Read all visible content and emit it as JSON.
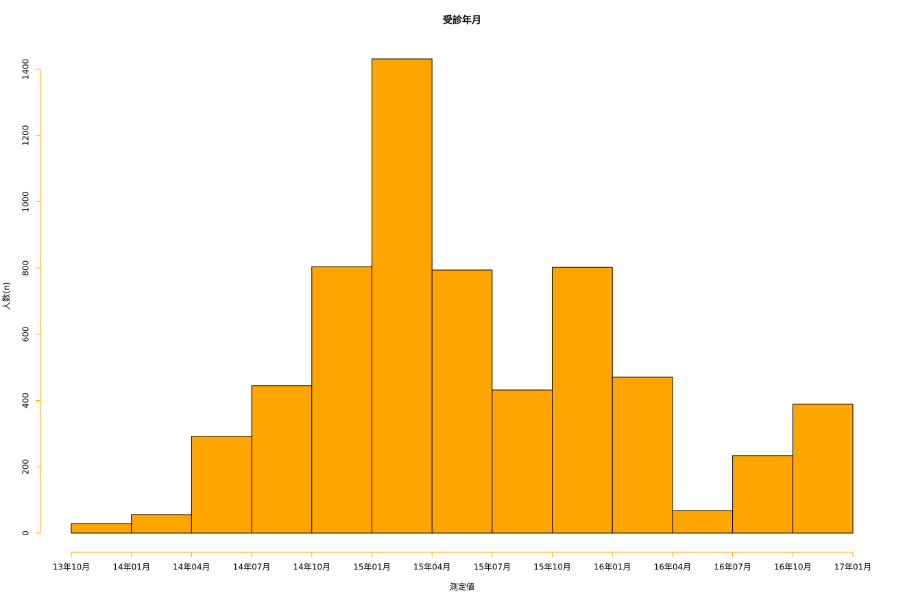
{
  "chart_data": {
    "type": "histogram",
    "title": "受診年月",
    "xlabel": "測定値",
    "ylabel": "人数(n)",
    "bins": [
      "13年10月",
      "14年01月",
      "14年04月",
      "14年07月",
      "14年10月",
      "15年01月",
      "15年04月",
      "15年07月",
      "15年10月",
      "16年01月",
      "16年04月",
      "16年07月",
      "16年10月",
      "17年01月"
    ],
    "counts": [
      29,
      56,
      292,
      445,
      804,
      1431,
      794,
      432,
      802,
      471,
      68,
      234,
      389
    ],
    "color": "#ffa500",
    "axis_color": "#ffa500",
    "ylim": [
      0,
      1431
    ],
    "yticks": [
      0,
      200,
      400,
      600,
      800,
      1000,
      1200,
      1400
    ]
  }
}
